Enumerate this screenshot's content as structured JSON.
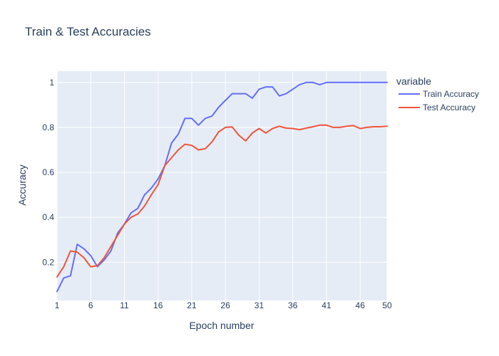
{
  "chart_data": {
    "type": "line",
    "title": "Train & Test Accuracies",
    "xlabel": "Epoch number",
    "ylabel": "Accuracy",
    "xlim": [
      1,
      50
    ],
    "ylim": [
      0.03,
      1.05
    ],
    "xticks": [
      1,
      6,
      11,
      16,
      21,
      26,
      31,
      36,
      41,
      46,
      50
    ],
    "yticks": [
      0.2,
      0.4,
      0.6,
      0.8,
      1
    ],
    "ytick_labels": [
      "0.2",
      "0.4",
      "0.6",
      "0.8",
      "1"
    ],
    "grid": true,
    "legend": {
      "title": "variable",
      "position": "right"
    },
    "plot_background": "#e5ecf6",
    "x": [
      1,
      2,
      3,
      4,
      5,
      6,
      7,
      8,
      9,
      10,
      11,
      12,
      13,
      14,
      15,
      16,
      17,
      18,
      19,
      20,
      21,
      22,
      23,
      24,
      25,
      26,
      27,
      28,
      29,
      30,
      31,
      32,
      33,
      34,
      35,
      36,
      37,
      38,
      39,
      40,
      41,
      42,
      43,
      44,
      45,
      46,
      47,
      48,
      49,
      50
    ],
    "series": [
      {
        "name": "Train Accuracy",
        "color": "#636efa",
        "values": [
          0.07,
          0.13,
          0.14,
          0.28,
          0.26,
          0.23,
          0.18,
          0.21,
          0.25,
          0.33,
          0.37,
          0.42,
          0.44,
          0.5,
          0.53,
          0.57,
          0.63,
          0.73,
          0.77,
          0.84,
          0.84,
          0.81,
          0.84,
          0.85,
          0.89,
          0.92,
          0.95,
          0.95,
          0.95,
          0.93,
          0.97,
          0.98,
          0.98,
          0.94,
          0.95,
          0.97,
          0.99,
          1.0,
          1.0,
          0.99,
          1.0,
          1.0,
          1.0,
          1.0,
          1.0,
          1.0,
          1.0,
          1.0,
          1.0,
          1.0
        ]
      },
      {
        "name": "Test Accuracy",
        "color": "#ef553b",
        "values": [
          0.135,
          0.18,
          0.25,
          0.245,
          0.22,
          0.18,
          0.185,
          0.22,
          0.27,
          0.32,
          0.37,
          0.4,
          0.415,
          0.45,
          0.5,
          0.545,
          0.63,
          0.665,
          0.7,
          0.725,
          0.72,
          0.7,
          0.705,
          0.735,
          0.78,
          0.8,
          0.802,
          0.765,
          0.74,
          0.775,
          0.795,
          0.775,
          0.795,
          0.805,
          0.797,
          0.795,
          0.79,
          0.797,
          0.803,
          0.81,
          0.81,
          0.8,
          0.8,
          0.805,
          0.808,
          0.795,
          0.8,
          0.803,
          0.803,
          0.805
        ]
      }
    ]
  }
}
